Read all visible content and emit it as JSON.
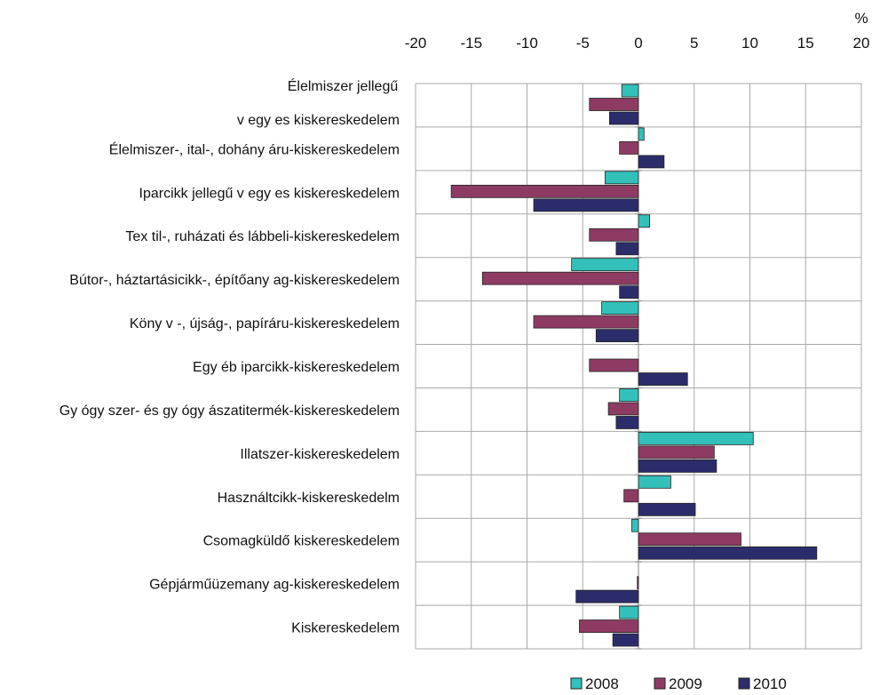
{
  "chart_data": {
    "type": "bar",
    "orientation": "horizontal",
    "unit": "%",
    "xlim": [
      -20,
      20
    ],
    "xticks": [
      -20,
      -15,
      -10,
      -5,
      0,
      5,
      10,
      15,
      20
    ],
    "x_axis_position": "top",
    "grid": true,
    "legend_position": "bottom-right",
    "categories": [
      [
        "Élelmiszer jellegű",
        "v egy es kiskereskedelem"
      ],
      [
        "Élelmiszer-, ital-, dohány áru-kiskereskedelem"
      ],
      [
        "Iparcikk jellegű v egy es kiskereskedelem"
      ],
      [
        "Tex til-, ruházati és lábbeli-kiskereskedelem"
      ],
      [
        "Bútor-, háztartásicikk-, építőany ag-kiskereskedelem"
      ],
      [
        "Köny v -, újság-, papíráru-kiskereskedelem"
      ],
      [
        "Egy éb iparcikk-kiskereskedelem"
      ],
      [
        "Gy ógy szer- és gy ógy ászatitermék-kiskereskedelem"
      ],
      [
        "Illatszer-kiskereskedelem"
      ],
      [
        "Használtcikk-kiskereskedelm"
      ],
      [
        "Csomagküldő kiskereskedelem"
      ],
      [
        "Gépjárműüzemany ag-kiskereskedelem"
      ],
      [
        "Kiskereskedelem"
      ]
    ],
    "series": [
      {
        "name": "2008",
        "color": "#33c0bb",
        "values": [
          -1.5,
          0.5,
          -3.0,
          1.0,
          -6.0,
          -3.3,
          0,
          -1.7,
          10.3,
          2.9,
          -0.6,
          0,
          -1.7
        ]
      },
      {
        "name": "2009",
        "color": "#8e3b63",
        "values": [
          -4.4,
          -1.7,
          -16.8,
          -4.4,
          -14.0,
          -9.4,
          -4.4,
          -2.7,
          6.8,
          -1.3,
          9.2,
          -0.1,
          -5.3
        ]
      },
      {
        "name": "2010",
        "color": "#2b2d6b",
        "values": [
          -2.6,
          2.3,
          -9.4,
          -2.0,
          -1.7,
          -3.8,
          4.4,
          -2.0,
          7.0,
          5.1,
          16.0,
          -5.6,
          -2.3
        ]
      }
    ]
  }
}
